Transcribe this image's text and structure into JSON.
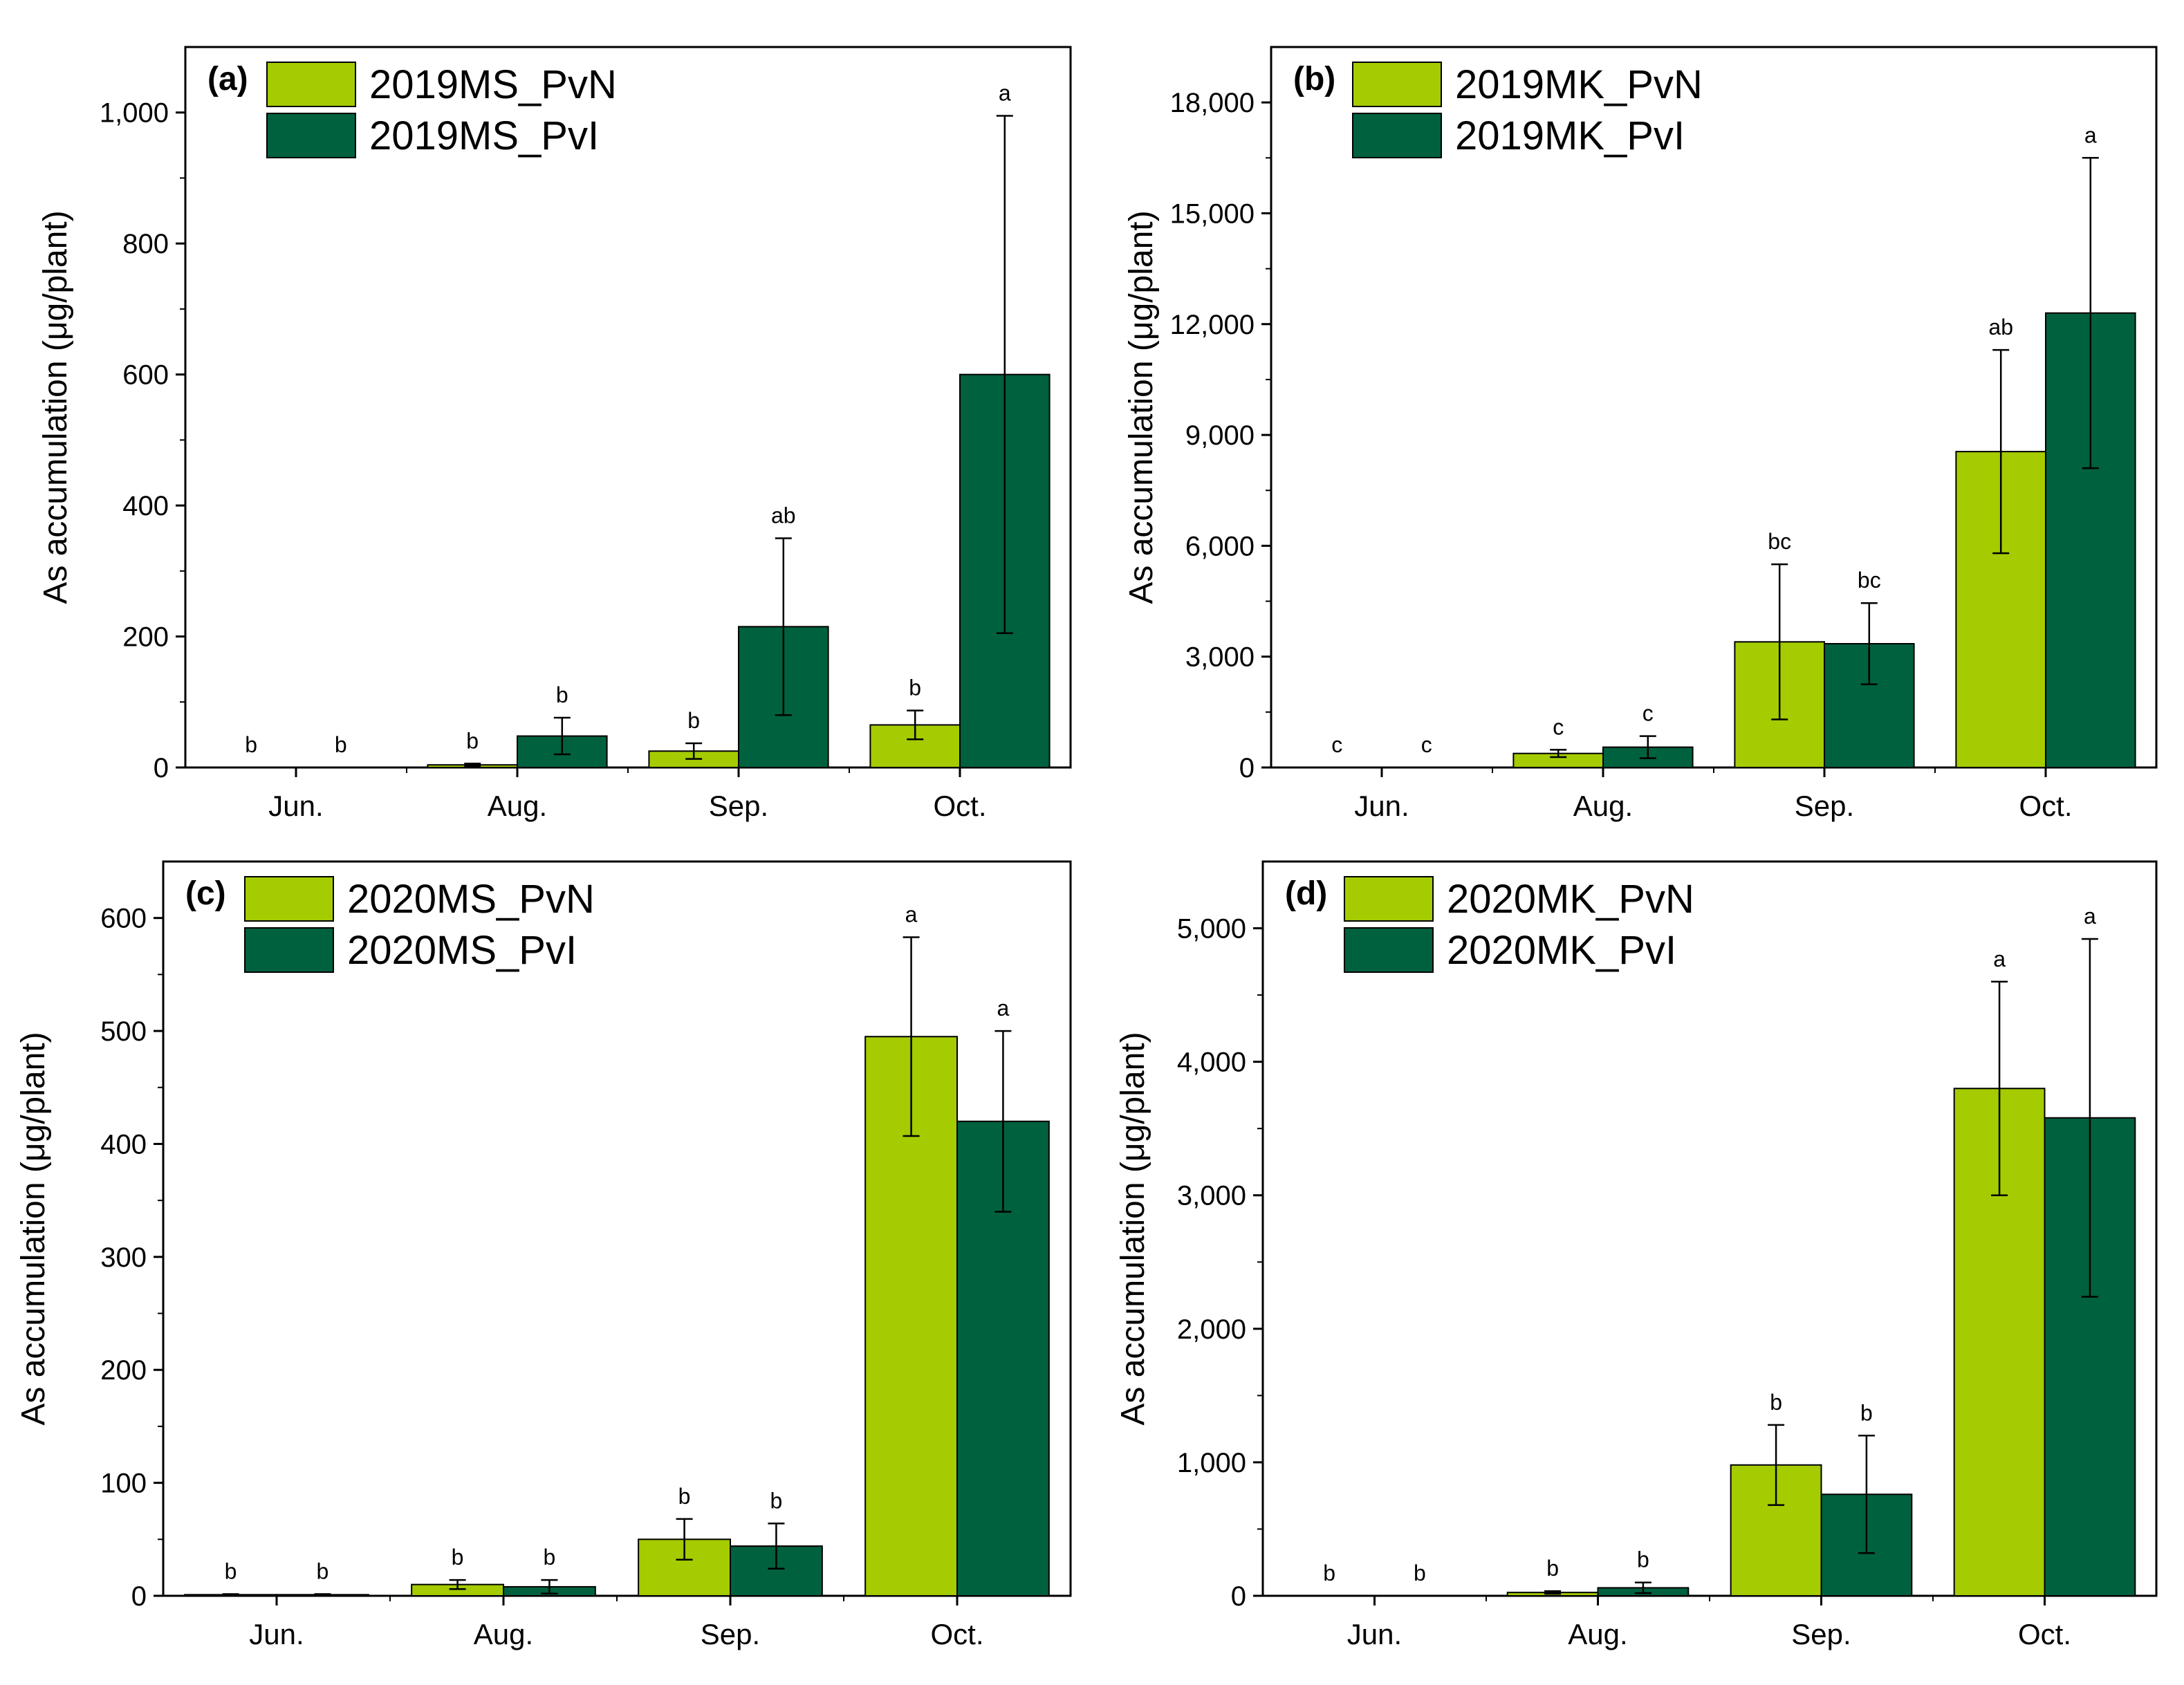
{
  "colors": {
    "pvn": "#a4cc00",
    "pvi": "#00613e",
    "axis": "#000000"
  },
  "chart_data": [
    {
      "type": "bar",
      "panel_label": "(a)",
      "title": "",
      "xlabel": "",
      "ylabel": "As accumulation (μg/plant)",
      "categories": [
        "Jun.",
        "Aug.",
        "Sep.",
        "Oct."
      ],
      "ylim": [
        0,
        1100
      ],
      "yticks": [
        0,
        200,
        400,
        600,
        800,
        1000
      ],
      "ytick_labels": [
        "0",
        "200",
        "400",
        "600",
        "800",
        "1,000"
      ],
      "legend_position": "top-left",
      "series": [
        {
          "name": "2019MS_PvN",
          "color_key": "pvn",
          "values": [
            0,
            4,
            25,
            65
          ],
          "errors": [
            0,
            2,
            12,
            22
          ],
          "letters": [
            "b",
            "b",
            "b",
            "b"
          ]
        },
        {
          "name": "2019MS_PvI",
          "color_key": "pvi",
          "values": [
            0,
            48,
            215,
            600
          ],
          "errors": [
            0,
            28,
            135,
            395
          ],
          "letters": [
            "b",
            "b",
            "ab",
            "a"
          ]
        }
      ]
    },
    {
      "type": "bar",
      "panel_label": "(b)",
      "title": "",
      "xlabel": "",
      "ylabel": "As accumulation (μg/plant)",
      "categories": [
        "Jun.",
        "Aug.",
        "Sep.",
        "Oct."
      ],
      "ylim": [
        0,
        19500
      ],
      "yticks": [
        0,
        3000,
        6000,
        9000,
        12000,
        15000,
        18000
      ],
      "ytick_labels": [
        "0",
        "3,000",
        "6,000",
        "9,000",
        "12,000",
        "15,000",
        "18,000"
      ],
      "legend_position": "top-left",
      "series": [
        {
          "name": "2019MK_PvN",
          "color_key": "pvn",
          "values": [
            0,
            380,
            3400,
            8550
          ],
          "errors": [
            0,
            100,
            2100,
            2750
          ],
          "letters": [
            "c",
            "c",
            "bc",
            "ab"
          ]
        },
        {
          "name": "2019MK_PvI",
          "color_key": "pvi",
          "values": [
            0,
            550,
            3350,
            12300
          ],
          "errors": [
            0,
            300,
            1100,
            4200
          ],
          "letters": [
            "c",
            "c",
            "bc",
            "a"
          ]
        }
      ]
    },
    {
      "type": "bar",
      "panel_label": "(c)",
      "title": "",
      "xlabel": "",
      "ylabel": "As accumulation (μg/plant)",
      "categories": [
        "Jun.",
        "Aug.",
        "Sep.",
        "Oct."
      ],
      "ylim": [
        0,
        650
      ],
      "yticks": [
        0,
        100,
        200,
        300,
        400,
        500,
        600
      ],
      "ytick_labels": [
        "0",
        "100",
        "200",
        "300",
        "400",
        "500",
        "600"
      ],
      "legend_position": "top-left",
      "series": [
        {
          "name": "2020MS_PvN",
          "color_key": "pvn",
          "values": [
            1,
            10,
            50,
            495
          ],
          "errors": [
            0.5,
            4,
            18,
            88
          ],
          "letters": [
            "b",
            "b",
            "b",
            "a"
          ]
        },
        {
          "name": "2020MS_PvI",
          "color_key": "pvi",
          "values": [
            1,
            8,
            44,
            420
          ],
          "errors": [
            0.5,
            6,
            20,
            80
          ],
          "letters": [
            "b",
            "b",
            "b",
            "a"
          ]
        }
      ]
    },
    {
      "type": "bar",
      "panel_label": "(d)",
      "title": "",
      "xlabel": "",
      "ylabel": "As accumulation (μg/plant)",
      "categories": [
        "Jun.",
        "Aug.",
        "Sep.",
        "Oct."
      ],
      "ylim": [
        0,
        5500
      ],
      "yticks": [
        0,
        1000,
        2000,
        3000,
        4000,
        5000
      ],
      "ytick_labels": [
        "0",
        "1,000",
        "2,000",
        "3,000",
        "4,000",
        "5,000"
      ],
      "legend_position": "top-left",
      "series": [
        {
          "name": "2020MK_PvN",
          "color_key": "pvn",
          "values": [
            0,
            25,
            980,
            3800
          ],
          "errors": [
            0,
            10,
            300,
            800
          ],
          "letters": [
            "b",
            "b",
            "b",
            "a"
          ]
        },
        {
          "name": "2020MK_PvI",
          "color_key": "pvi",
          "values": [
            0,
            60,
            760,
            3580
          ],
          "errors": [
            0,
            40,
            440,
            1340
          ],
          "letters": [
            "b",
            "b",
            "b",
            "a"
          ]
        }
      ]
    }
  ]
}
